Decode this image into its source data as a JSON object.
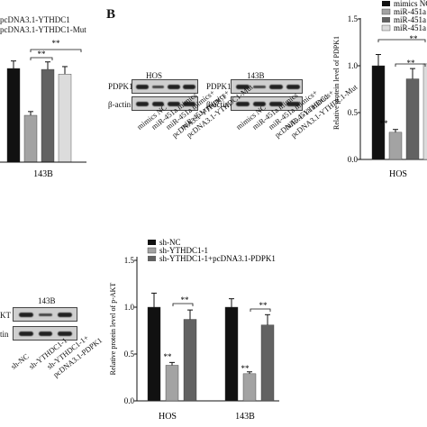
{
  "panel_b_letter": "B",
  "top_left": {
    "legend": [
      "pcDNA3.1-YTHDC1",
      "pcDNA3.1-YTHDC1-Mut"
    ],
    "sig": [
      "**",
      "**"
    ],
    "xlabel": "143B"
  },
  "blot_b": {
    "blot1": {
      "title": "HOS",
      "row_labels": [
        "PDPK1",
        "β-actin"
      ]
    },
    "blot2": {
      "title": "143B",
      "row_labels": [
        "PDPK1",
        "β-actin"
      ]
    },
    "lanes": [
      "mimics NC",
      "miR-451a mimics",
      "miR-451a mimics+ pcDNA3.1-YTHDC1",
      "miR-451a mimics+ pcDNA3.1-YTHDC1-Mut"
    ],
    "lane_lines": [
      [
        "mimics NC"
      ],
      [
        "miR-451a mimics"
      ],
      [
        "miR-451a mimics+",
        "pcDNA3.1-YTHDC1"
      ],
      [
        "miR-451a mimics+",
        "pcDNA3.1-YTHDC1-Mut"
      ]
    ]
  },
  "chart_b": {
    "legend": [
      "mimics NC",
      "miR-451a",
      "miR-451a",
      "miR-451a"
    ],
    "ylabel": "Relative protein level of PDPK1",
    "sig": [
      "**",
      "**",
      "**"
    ],
    "xlabel": "HOS",
    "ticks": [
      "0.0",
      "0.5",
      "1.0",
      "1.5"
    ]
  },
  "blot_bottom": {
    "title": "143B",
    "row_labels": [
      "KT",
      "tin"
    ],
    "lane_lines": [
      [
        "sh-NC"
      ],
      [
        "sh-YTHDC1-1"
      ],
      [
        "sh-YTHDC1-1+",
        "pcDNA3.1-PDPK1"
      ]
    ]
  },
  "colors": {
    "black_bar": "#111111",
    "gray_bar": "#a3a3a3",
    "dark_gray_bar": "#626262",
    "light_gray_bar": "#dcdcdc"
  },
  "chart_data": [
    {
      "type": "bar",
      "title": "",
      "xlabel": "143B",
      "categories": [
        "143B"
      ],
      "series": [
        {
          "values": [
            1.0
          ],
          "error": [
            0.08
          ]
        },
        {
          "values": [
            0.5
          ],
          "error": [
            0.04
          ]
        },
        {
          "values": [
            0.99
          ],
          "error": [
            0.08
          ]
        },
        {
          "values": [
            0.94
          ],
          "error": [
            0.08
          ]
        }
      ]
    },
    {
      "type": "bar",
      "title": "",
      "ylabel": "Relative protein level of PDPK1",
      "xlabel": "HOS",
      "ylim": [
        0,
        1.5
      ],
      "categories": [
        "HOS"
      ],
      "series": [
        {
          "name": "mimics NC",
          "values": [
            1.0
          ],
          "error": [
            0.12
          ]
        },
        {
          "name": "miR-451a",
          "values": [
            0.29
          ],
          "error": [
            0.03
          ]
        },
        {
          "name": "miR-451a",
          "values": [
            0.86
          ],
          "error": [
            0.11
          ]
        },
        {
          "values": [
            1.02
          ],
          "error": [
            0.1
          ]
        }
      ]
    },
    {
      "type": "bar",
      "title": "",
      "ylabel": "Relative protein level of p-AKT",
      "xlabel": "",
      "ylim": [
        0,
        1.5
      ],
      "ticks": [
        "0.0",
        "0.5",
        "1.0",
        "1.5"
      ],
      "categories": [
        "HOS",
        "143B"
      ],
      "series": [
        {
          "name": "sh-NC",
          "values": [
            1.0,
            1.0
          ],
          "error": [
            0.15,
            0.09
          ]
        },
        {
          "name": "sh-YTHDC1-1",
          "values": [
            0.38,
            0.29
          ],
          "error": [
            0.03,
            0.02
          ]
        },
        {
          "name": "sh-YTHDC1-1+pcDNA3.1-PDPK1",
          "values": [
            0.87,
            0.81
          ],
          "error": [
            0.1,
            0.11
          ]
        }
      ],
      "sig": [
        "**",
        "**",
        "**",
        "**"
      ]
    }
  ]
}
